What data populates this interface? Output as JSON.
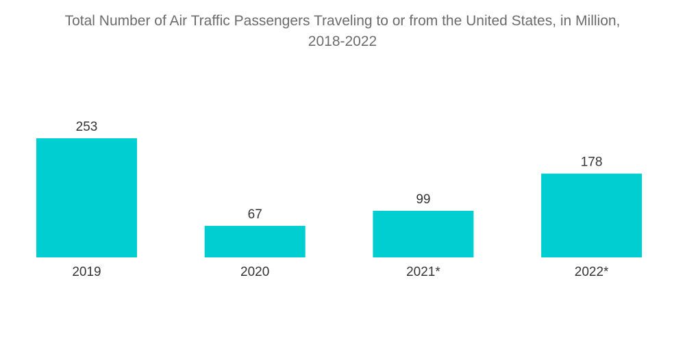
{
  "chart_data": {
    "type": "bar",
    "title_line1": "Total Number of Air Traffic Passengers Traveling to or from the United States, in Million,",
    "title_line2": "2018-2022",
    "categories": [
      "2019",
      "2020",
      "2021*",
      "2022*"
    ],
    "values": [
      253,
      67,
      99,
      178
    ],
    "value_labels": [
      "253",
      "67",
      "99",
      "178"
    ],
    "xlabel": "",
    "ylabel": "",
    "ylim": [
      0,
      253
    ],
    "grid": false,
    "legend": "none",
    "bar_color": "#00ced1"
  }
}
